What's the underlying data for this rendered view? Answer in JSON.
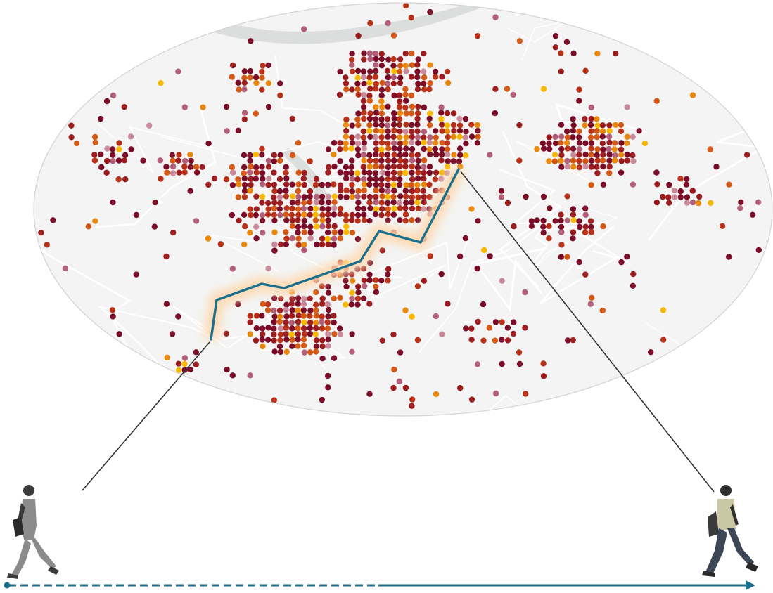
{
  "colors": {
    "map_background": "#f3f4f3",
    "map_outline": "#d2d4d2",
    "river": "#dcdedd",
    "roads": "#ffffff",
    "density_palette": [
      "#7a0c27",
      "#9b1d20",
      "#b8321a",
      "#d35a16",
      "#e8890e",
      "#f6b800",
      "#b2607a",
      "#c98a9b"
    ],
    "route": "#1a6f8c",
    "timeline": "#1a6f8c",
    "connector": "#333333",
    "pedestrian_skin": "#3b3b3b",
    "pedestrian_clothes": "#8c8c8c"
  },
  "icons": {
    "start": "walking-person-icon",
    "end": "walking-person-icon"
  },
  "timeline": {
    "planned_style": "dashed",
    "actual_style": "solid",
    "split_fraction": 0.5
  },
  "route": {
    "description_style": "polyline"
  }
}
